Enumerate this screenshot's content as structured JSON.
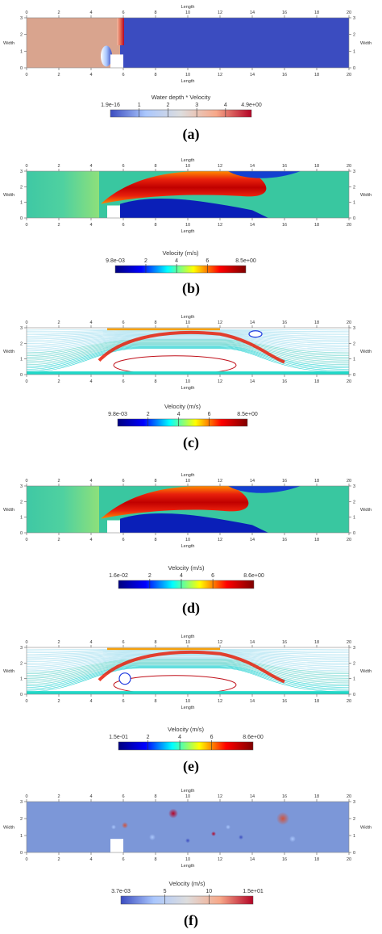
{
  "chart_data": [
    {
      "type": "heatmap",
      "panel_label": "(a)",
      "xlabel": "Length",
      "ylabel": "Width",
      "xticks": [
        0,
        2,
        4,
        6,
        8,
        10,
        12,
        14,
        16,
        18,
        20
      ],
      "yticks": [
        0,
        1,
        2,
        3
      ],
      "xlim": [
        0,
        20
      ],
      "ylim": [
        0,
        3
      ],
      "colorbar": {
        "title": "Water depth * Velocity",
        "min_label": "1.9e-16",
        "max_label": "4.9e+00",
        "ticks": [
          "1",
          "2",
          "3",
          "4"
        ],
        "colormap": "cool-warm",
        "colors": [
          "#3b4cc0",
          "#aac7fd",
          "#dddddd",
          "#f7a889",
          "#b40426"
        ]
      },
      "obstacle": {
        "x_range": [
          5.2,
          6.0
        ],
        "y_range": [
          0,
          0.8
        ]
      }
    },
    {
      "type": "heatmap",
      "panel_label": "(b)",
      "xlabel": "Length",
      "ylabel": "Width",
      "xticks": [
        0,
        2,
        4,
        6,
        8,
        10,
        12,
        14,
        16,
        18,
        20
      ],
      "yticks": [
        0,
        1,
        2,
        3
      ],
      "xlim": [
        0,
        20
      ],
      "ylim": [
        0,
        3
      ],
      "colorbar": {
        "title": "Velocity (m/s)",
        "min_label": "9.8e-03",
        "max_label": "8.5e+00",
        "ticks": [
          "2",
          "4",
          "6"
        ],
        "colormap": "jet",
        "colors": [
          "#00007f",
          "#0000ff",
          "#00ffff",
          "#ffff00",
          "#ff0000",
          "#7f0000"
        ]
      },
      "obstacle": {
        "x_range": [
          5.0,
          5.8
        ],
        "y_range": [
          0,
          0.8
        ]
      }
    },
    {
      "type": "streamlines",
      "panel_label": "(c)",
      "xlabel": "Length",
      "ylabel": "Width",
      "xticks": [
        0,
        2,
        4,
        6,
        8,
        10,
        12,
        14,
        16,
        18,
        20
      ],
      "yticks": [
        0,
        1,
        2,
        3
      ],
      "xlim": [
        0,
        20
      ],
      "ylim": [
        0,
        3
      ],
      "colorbar": {
        "title": "Velocity (m/s)",
        "min_label": "9.8e-03",
        "max_label": "8.5e+00",
        "ticks": [
          "2",
          "4",
          "6"
        ],
        "colormap": "jet",
        "colors": [
          "#00007f",
          "#0000ff",
          "#00ffff",
          "#ffff00",
          "#ff0000",
          "#7f0000"
        ]
      }
    },
    {
      "type": "heatmap",
      "panel_label": "(d)",
      "xlabel": "Length",
      "ylabel": "Width",
      "xticks": [
        0,
        2,
        4,
        6,
        8,
        10,
        12,
        14,
        16,
        18,
        20
      ],
      "yticks": [
        0,
        1,
        2,
        3
      ],
      "xlim": [
        0,
        20
      ],
      "ylim": [
        0,
        3
      ],
      "colorbar": {
        "title": "Velocity (m/s)",
        "min_label": "1.6e-02",
        "max_label": "8.6e+00",
        "ticks": [
          "2",
          "4",
          "6"
        ],
        "colormap": "jet",
        "colors": [
          "#00007f",
          "#0000ff",
          "#00ffff",
          "#ffff00",
          "#ff0000",
          "#7f0000"
        ]
      },
      "obstacle": {
        "x_range": [
          5.0,
          5.8
        ],
        "y_range": [
          0,
          0.8
        ]
      }
    },
    {
      "type": "streamlines",
      "panel_label": "(e)",
      "xlabel": "Length",
      "ylabel": "Width",
      "xticks": [
        0,
        2,
        4,
        6,
        8,
        10,
        12,
        14,
        16,
        18,
        20
      ],
      "yticks": [
        0,
        1,
        2,
        3
      ],
      "xlim": [
        0,
        20
      ],
      "ylim": [
        0,
        3
      ],
      "colorbar": {
        "title": "Velocity (m/s)",
        "min_label": "1.5e-01",
        "max_label": "8.6e+00",
        "ticks": [
          "2",
          "4",
          "6"
        ],
        "colormap": "jet",
        "colors": [
          "#00007f",
          "#0000ff",
          "#00ffff",
          "#ffff00",
          "#ff0000",
          "#7f0000"
        ]
      }
    },
    {
      "type": "heatmap",
      "panel_label": "(f)",
      "xlabel": "Length",
      "ylabel": "Width",
      "xticks": [
        0,
        2,
        4,
        6,
        8,
        10,
        12,
        14,
        16,
        18,
        20
      ],
      "yticks": [
        0,
        1,
        2,
        3
      ],
      "xlim": [
        0,
        20
      ],
      "ylim": [
        0,
        3
      ],
      "colorbar": {
        "title": "Velocity (m/s)",
        "min_label": "3.7e-03",
        "max_label": "1.5e+01",
        "ticks": [
          "5",
          "10"
        ],
        "colormap": "cool-warm",
        "colors": [
          "#3b4cc0",
          "#aac7fd",
          "#dddddd",
          "#f7a889",
          "#b40426"
        ]
      },
      "obstacle": {
        "x_range": [
          5.2,
          6.0
        ],
        "y_range": [
          0,
          0.8
        ]
      }
    }
  ]
}
